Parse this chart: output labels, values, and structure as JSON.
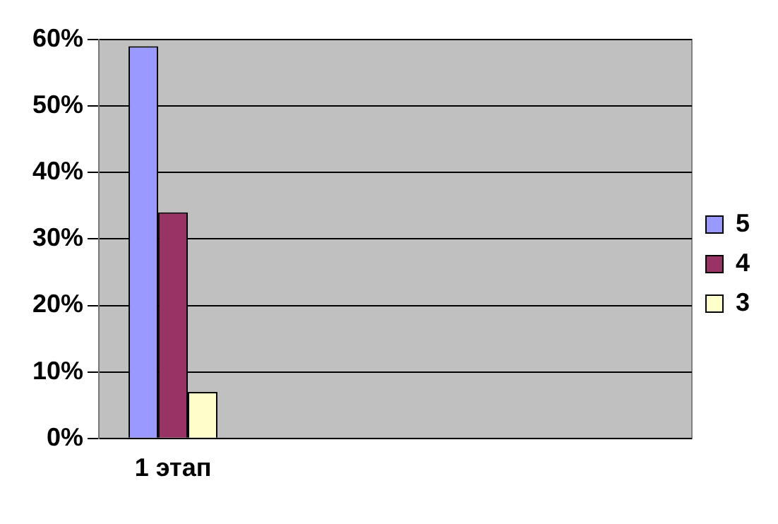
{
  "chart_data": {
    "type": "bar",
    "categories": [
      "1 этап",
      null,
      null,
      null
    ],
    "series": [
      {
        "name": "5",
        "color": "#9999ff",
        "values": [
          59,
          null,
          null,
          null
        ]
      },
      {
        "name": "4",
        "color": "#993366",
        "values": [
          34,
          null,
          null,
          null
        ]
      },
      {
        "name": "3",
        "color": "#ffffcc",
        "values": [
          7,
          null,
          null,
          null
        ]
      }
    ],
    "ylim": [
      0,
      60
    ],
    "yticks": [
      {
        "value": 0,
        "label": "0%"
      },
      {
        "value": 10,
        "label": "10%"
      },
      {
        "value": 20,
        "label": "20%"
      },
      {
        "value": 30,
        "label": "30%"
      },
      {
        "value": 40,
        "label": "40%"
      },
      {
        "value": 50,
        "label": "50%"
      },
      {
        "value": 60,
        "label": "60%"
      }
    ],
    "grid": "y",
    "legend": "right"
  }
}
